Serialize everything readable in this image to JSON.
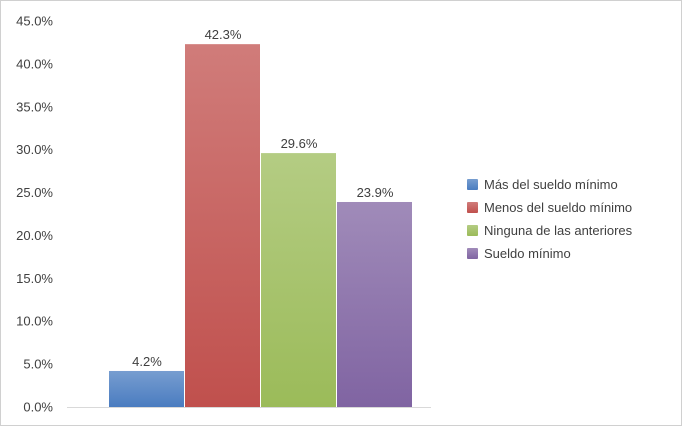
{
  "chart_data": {
    "type": "bar",
    "title": "",
    "xlabel": "",
    "ylabel": "",
    "ylim": [
      0,
      45
    ],
    "ytick_step": 5,
    "ytick_labels": [
      "0.0%",
      "5.0%",
      "10.0%",
      "15.0%",
      "20.0%",
      "25.0%",
      "30.0%",
      "35.0%",
      "40.0%",
      "45.0%"
    ],
    "grid": false,
    "legend_position": "right",
    "series": [
      {
        "name": "Más del sueldo mínimo",
        "value": 4.2,
        "label": "4.2%",
        "color": "#4a7cc0"
      },
      {
        "name": "Menos del sueldo mínimo",
        "value": 42.3,
        "label": "42.3%",
        "color": "#c0504d"
      },
      {
        "name": "Ninguna de las anteriores",
        "value": 29.6,
        "label": "29.6%",
        "color": "#9bbb59"
      },
      {
        "name": "Sueldo mínimo",
        "value": 23.9,
        "label": "23.9%",
        "color": "#8064a2"
      }
    ]
  }
}
